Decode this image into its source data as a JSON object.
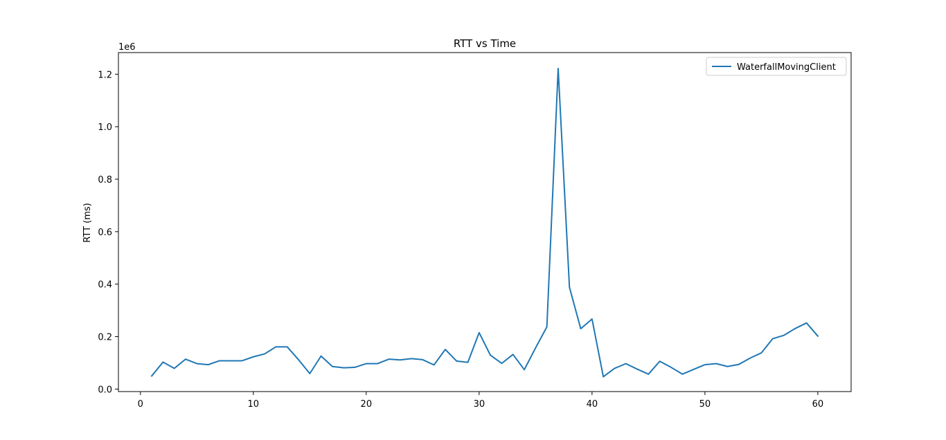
{
  "chart_data": {
    "type": "line",
    "title": "RTT vs Time",
    "xlabel": "",
    "ylabel": "RTT (ms)",
    "y_offset_label": "1e6",
    "xlim": [
      -1.95,
      62.95
    ],
    "ylim": [
      -0.0095,
      1.2825
    ],
    "y_scale_note": "values in units of 1e6 ms",
    "x_ticks": [
      0,
      10,
      20,
      30,
      40,
      50,
      60
    ],
    "x_tick_labels": [
      "0",
      "10",
      "20",
      "30",
      "40",
      "50",
      "60"
    ],
    "y_ticks": [
      0.0,
      0.2,
      0.4,
      0.6,
      0.8,
      1.0,
      1.2
    ],
    "y_tick_labels": [
      "0.0",
      "0.2",
      "0.4",
      "0.6",
      "0.8",
      "1.0",
      "1.2"
    ],
    "grid": false,
    "legend_position": "top-right",
    "series": [
      {
        "name": "WaterfallMovingClient",
        "color": "#1f77b4",
        "x": [
          1,
          2,
          3,
          4,
          5,
          6,
          7,
          8,
          9,
          10,
          11,
          12,
          13,
          14,
          15,
          16,
          17,
          18,
          19,
          20,
          21,
          22,
          23,
          24,
          25,
          26,
          27,
          28,
          29,
          30,
          31,
          32,
          33,
          34,
          35,
          36,
          37,
          38,
          39,
          40,
          41,
          42,
          43,
          44,
          45,
          46,
          47,
          48,
          49,
          50,
          51,
          52,
          53,
          54,
          55,
          56,
          57,
          58,
          59,
          60
        ],
        "values": [
          0.05,
          0.103,
          0.079,
          0.114,
          0.097,
          0.093,
          0.108,
          0.108,
          0.108,
          0.123,
          0.134,
          0.161,
          0.161,
          0.112,
          0.059,
          0.126,
          0.086,
          0.081,
          0.083,
          0.097,
          0.097,
          0.114,
          0.111,
          0.116,
          0.112,
          0.092,
          0.151,
          0.107,
          0.102,
          0.215,
          0.129,
          0.098,
          0.132,
          0.074,
          0.157,
          0.237,
          1.222,
          0.388,
          0.23,
          0.267,
          0.047,
          0.079,
          0.097,
          0.076,
          0.057,
          0.106,
          0.083,
          0.057,
          0.075,
          0.093,
          0.097,
          0.086,
          0.094,
          0.118,
          0.138,
          0.192,
          0.205,
          0.231,
          0.252,
          0.202
        ]
      }
    ]
  }
}
